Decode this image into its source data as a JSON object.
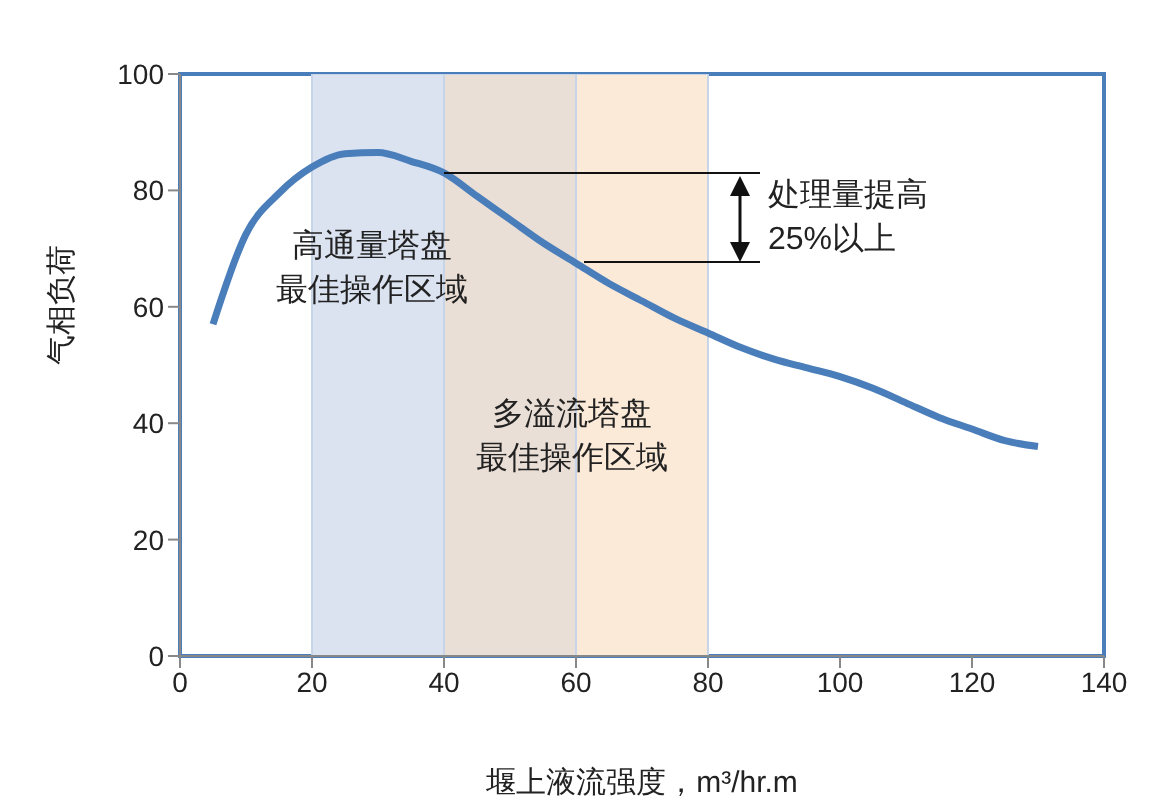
{
  "chart_data": {
    "type": "line",
    "xlabel": "堰上液流强度，m³/hr.m",
    "ylabel": "气相负荷",
    "x": [
      5,
      10,
      15,
      20,
      25,
      30,
      35,
      40,
      45,
      50,
      55,
      60,
      65,
      70,
      75,
      80,
      85,
      90,
      95,
      100,
      105,
      110,
      115,
      120,
      125,
      130
    ],
    "series": [
      {
        "color": "#4a7ebb",
        "values": [
          57,
          72.5,
          79.5,
          84,
          86.3,
          86.5,
          85,
          83,
          79,
          75,
          71,
          67.5,
          64,
          61,
          58,
          55.5,
          53,
          51,
          49.5,
          48,
          46,
          43.5,
          41,
          39,
          37,
          36
        ]
      }
    ],
    "xlim": [
      0,
      140
    ],
    "xticks": [
      0,
      20,
      40,
      60,
      80,
      100,
      120,
      140
    ],
    "ylim": [
      0,
      100
    ],
    "yticks": [
      0,
      20,
      40,
      60,
      80,
      100
    ],
    "marker": "none",
    "line_style": "solid",
    "bands": [
      {
        "axis": "x",
        "from": 20,
        "to": 40,
        "color": "#dbe3f1"
      },
      {
        "axis": "x",
        "from": 40,
        "to": 60,
        "color": "#eadfd6"
      },
      {
        "axis": "x",
        "from": 60,
        "to": 80,
        "color": "#fcead8"
      }
    ],
    "annotations": [
      "高通量塔盘最佳操作区域",
      "多溢流塔盘最佳操作区域",
      {
        "text": "处理量提高25%以上",
        "x": 40,
        "y": 83
      }
    ]
  }
}
